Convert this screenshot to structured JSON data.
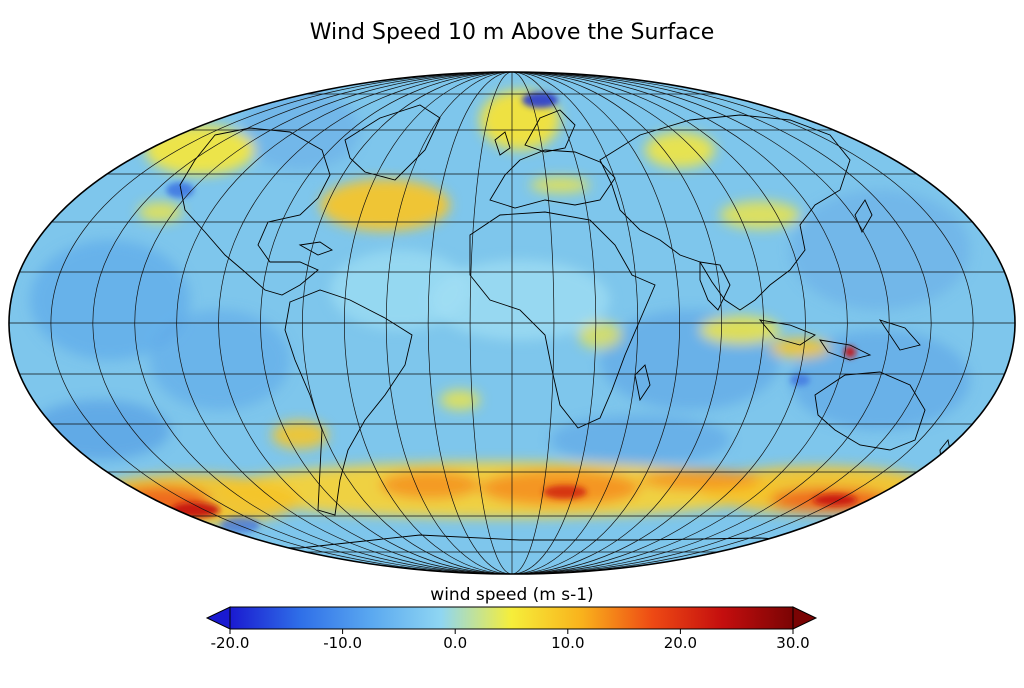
{
  "title": "Wind Speed 10 m Above the Surface",
  "projection": "mollweide",
  "colorbar": {
    "label": "wind speed (m s-1)",
    "min": -20,
    "max": 30,
    "ticks": [
      "-20.0",
      "-10.0",
      "0.0",
      "10.0",
      "20.0",
      "30.0"
    ],
    "tick_values": [
      -20,
      -10,
      0,
      10,
      20,
      30
    ],
    "extend": "both",
    "colors": [
      "#1a1ad0",
      "#2f6fe8",
      "#5aa8f0",
      "#8fd6f2",
      "#f6ee3a",
      "#f9b21c",
      "#ee4a14",
      "#c40e0e",
      "#7a0404"
    ]
  },
  "map": {
    "ocean_base_color": "#7ec6ec",
    "grid": true,
    "meridian_step_deg": 15,
    "parallel_step_deg": 15,
    "coastlines": true
  }
}
